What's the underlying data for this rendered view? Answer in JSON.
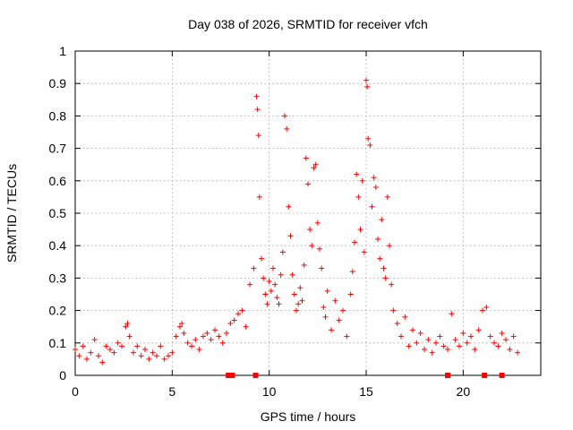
{
  "chart_data": {
    "type": "scatter",
    "title": "Day 038 of 2026, SRMTID for receiver vfch",
    "xlabel": "GPS time / hours",
    "ylabel": "SRMTID / TECUs",
    "xlim": [
      0,
      24
    ],
    "ylim": [
      0,
      1
    ],
    "xticks": [
      0,
      5,
      10,
      15,
      20
    ],
    "xtick_labels": [
      "0",
      "5",
      "10",
      "15",
      "20"
    ],
    "yticks": [
      0,
      0.1,
      0.2,
      0.3,
      0.4,
      0.5,
      0.6,
      0.7,
      0.8,
      0.9,
      1
    ],
    "ytick_labels": [
      "0",
      "0.1",
      "0.2",
      "0.3",
      "0.4",
      "0.5",
      "0.6",
      "0.7",
      "0.8",
      "0.9",
      "1"
    ],
    "grid": true,
    "marker": "+",
    "color": "#ff0000",
    "series": [
      {
        "name": "SRMTID",
        "x": [
          0.0,
          0.2,
          0.4,
          0.6,
          0.8,
          1.0,
          1.2,
          1.4,
          1.6,
          1.8,
          2.0,
          2.2,
          2.4,
          2.6,
          2.7,
          2.8,
          3.0,
          3.2,
          3.4,
          3.6,
          3.8,
          4.0,
          4.2,
          4.4,
          4.6,
          4.8,
          5.0,
          5.2,
          5.4,
          5.5,
          5.6,
          5.8,
          6.0,
          6.2,
          6.4,
          6.6,
          6.8,
          7.0,
          7.2,
          7.4,
          7.6,
          7.8,
          8.0,
          8.2,
          8.4,
          8.6,
          8.8,
          9.0,
          9.2,
          9.35,
          9.4,
          9.45,
          9.5,
          9.6,
          9.7,
          9.8,
          9.9,
          10.0,
          10.1,
          10.2,
          10.3,
          10.4,
          10.5,
          10.6,
          10.7,
          10.8,
          10.9,
          11.0,
          11.1,
          11.2,
          11.3,
          11.4,
          11.5,
          11.6,
          11.7,
          11.8,
          11.9,
          12.0,
          12.1,
          12.2,
          12.3,
          12.4,
          12.5,
          12.6,
          12.7,
          12.8,
          12.9,
          13.0,
          13.2,
          13.4,
          13.6,
          13.8,
          14.0,
          14.2,
          14.3,
          14.4,
          14.5,
          14.6,
          14.7,
          14.8,
          14.9,
          15.0,
          15.05,
          15.1,
          15.2,
          15.3,
          15.4,
          15.5,
          15.6,
          15.7,
          15.8,
          15.9,
          16.0,
          16.1,
          16.2,
          16.3,
          16.4,
          16.6,
          16.8,
          17.0,
          17.2,
          17.4,
          17.6,
          17.8,
          18.0,
          18.2,
          18.4,
          18.6,
          18.8,
          19.0,
          19.2,
          19.4,
          19.6,
          19.8,
          20.0,
          20.2,
          20.4,
          20.6,
          20.8,
          21.0,
          21.2,
          21.4,
          21.6,
          21.8,
          22.0,
          22.2,
          22.4,
          22.6,
          22.8
        ],
        "values": [
          0.08,
          0.06,
          0.09,
          0.05,
          0.07,
          0.11,
          0.06,
          0.04,
          0.09,
          0.08,
          0.07,
          0.1,
          0.09,
          0.15,
          0.16,
          0.12,
          0.07,
          0.09,
          0.06,
          0.08,
          0.05,
          0.07,
          0.06,
          0.09,
          0.05,
          0.06,
          0.07,
          0.12,
          0.15,
          0.16,
          0.13,
          0.1,
          0.09,
          0.11,
          0.08,
          0.12,
          0.13,
          0.11,
          0.14,
          0.12,
          0.1,
          0.13,
          0.16,
          0.17,
          0.19,
          0.2,
          0.15,
          0.28,
          0.33,
          0.86,
          0.82,
          0.74,
          0.55,
          0.36,
          0.3,
          0.25,
          0.22,
          0.29,
          0.26,
          0.33,
          0.28,
          0.24,
          0.22,
          0.31,
          0.38,
          0.8,
          0.76,
          0.52,
          0.43,
          0.31,
          0.25,
          0.2,
          0.22,
          0.27,
          0.23,
          0.34,
          0.67,
          0.59,
          0.45,
          0.4,
          0.64,
          0.65,
          0.47,
          0.39,
          0.33,
          0.21,
          0.18,
          0.26,
          0.14,
          0.23,
          0.17,
          0.2,
          0.12,
          0.25,
          0.32,
          0.41,
          0.62,
          0.55,
          0.45,
          0.6,
          0.38,
          0.91,
          0.89,
          0.73,
          0.71,
          0.52,
          0.61,
          0.58,
          0.42,
          0.36,
          0.48,
          0.33,
          0.3,
          0.55,
          0.4,
          0.28,
          0.2,
          0.16,
          0.12,
          0.18,
          0.09,
          0.14,
          0.1,
          0.13,
          0.08,
          0.11,
          0.07,
          0.1,
          0.12,
          0.09,
          0.08,
          0.19,
          0.11,
          0.09,
          0.13,
          0.1,
          0.12,
          0.08,
          0.14,
          0.2,
          0.21,
          0.12,
          0.1,
          0.09,
          0.13,
          0.11,
          0.08,
          0.12,
          0.07
        ]
      }
    ],
    "gap_markers_x": [
      7.9,
      8.1,
      9.3,
      19.2,
      21.1,
      22.0
    ]
  }
}
